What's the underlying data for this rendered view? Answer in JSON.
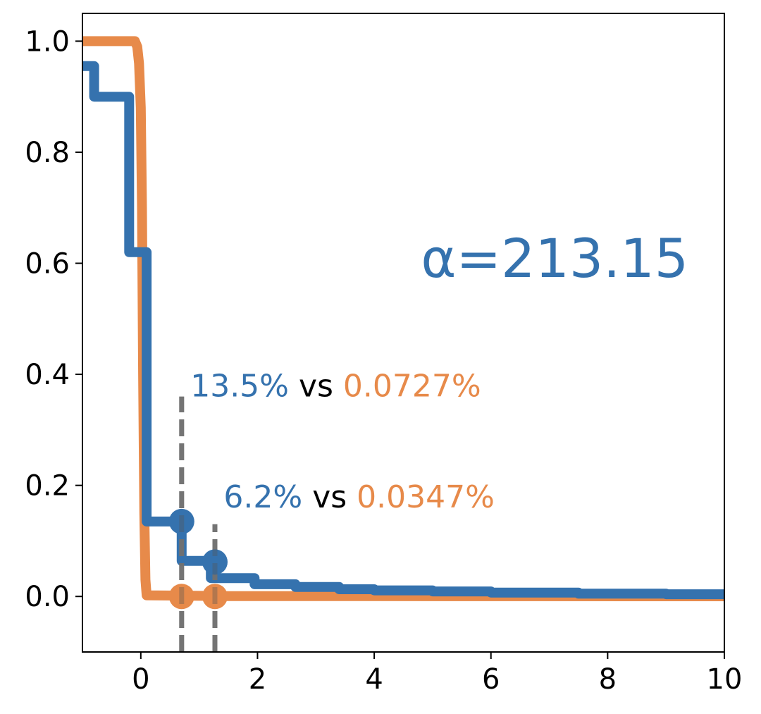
{
  "chart_data": {
    "type": "line",
    "title": "",
    "xlabel": "",
    "ylabel": "",
    "xlim": [
      -1,
      10
    ],
    "ylim": [
      -0.1,
      1.05
    ],
    "grid": false,
    "x_ticks": [
      "0",
      "2",
      "4",
      "6",
      "8",
      "10"
    ],
    "x_tick_values": [
      0,
      2,
      4,
      6,
      8,
      10
    ],
    "y_ticks": [
      "0.0",
      "0.2",
      "0.4",
      "0.6",
      "0.8",
      "1.0"
    ],
    "y_tick_values": [
      0.0,
      0.2,
      0.4,
      0.6,
      0.8,
      1.0
    ],
    "colors": {
      "blue": "#3572ae",
      "orange": "#e78a4a",
      "marker_line": "#808080"
    },
    "series": [
      {
        "color": "#3572ae",
        "step": true,
        "points": [
          [
            -1,
            0.955
          ],
          [
            -0.8,
            0.955
          ],
          [
            -0.8,
            0.9
          ],
          [
            -0.2,
            0.9
          ],
          [
            -0.2,
            0.62
          ],
          [
            0.1,
            0.62
          ],
          [
            0.1,
            0.135
          ],
          [
            0.7,
            0.135
          ],
          [
            0.7,
            0.064
          ],
          [
            1.2,
            0.064
          ],
          [
            1.2,
            0.033
          ],
          [
            1.95,
            0.033
          ],
          [
            1.95,
            0.022
          ],
          [
            2.65,
            0.022
          ],
          [
            2.65,
            0.017
          ],
          [
            3.4,
            0.017
          ],
          [
            3.4,
            0.013
          ],
          [
            4.0,
            0.013
          ],
          [
            4.0,
            0.011
          ],
          [
            5.0,
            0.011
          ],
          [
            5.0,
            0.009
          ],
          [
            6.0,
            0.009
          ],
          [
            6.0,
            0.007
          ],
          [
            7.5,
            0.007
          ],
          [
            7.5,
            0.005
          ],
          [
            9.0,
            0.005
          ],
          [
            9.0,
            0.004
          ],
          [
            10,
            0.004
          ]
        ]
      },
      {
        "color": "#e78a4a",
        "step": false,
        "points": [
          [
            -1,
            1.0
          ],
          [
            -0.1,
            1.0
          ],
          [
            -0.06,
            0.99
          ],
          [
            -0.03,
            0.96
          ],
          [
            0.0,
            0.88
          ],
          [
            0.02,
            0.7
          ],
          [
            0.04,
            0.4
          ],
          [
            0.06,
            0.15
          ],
          [
            0.08,
            0.03
          ],
          [
            0.1,
            0.002
          ],
          [
            1.5,
            0.0007
          ],
          [
            10,
            0.0003
          ]
        ]
      }
    ],
    "markers": [
      {
        "x": 0.7,
        "y": 0.135,
        "color": "#3572ae"
      },
      {
        "x": 1.27,
        "y": 0.062,
        "color": "#3572ae"
      },
      {
        "x": 0.7,
        "y": 0.0,
        "color": "#e78a4a"
      },
      {
        "x": 1.27,
        "y": 0.0,
        "color": "#e78a4a"
      }
    ],
    "vlines": [
      {
        "x": 0.7,
        "y_from": -0.1,
        "y_to": 0.36
      },
      {
        "x": 1.27,
        "y_from": -0.1,
        "y_to": 0.13
      }
    ],
    "annotations": [
      {
        "x": 0.85,
        "y": 0.36,
        "parts": [
          "13.5%",
          " vs ",
          "0.0727%"
        ]
      },
      {
        "x": 1.42,
        "y": 0.16,
        "parts": [
          "6.2%",
          " vs ",
          "0.0347%"
        ]
      }
    ],
    "alpha_text": "α=213.15",
    "alpha_pos": [
      4.8,
      0.575
    ]
  }
}
